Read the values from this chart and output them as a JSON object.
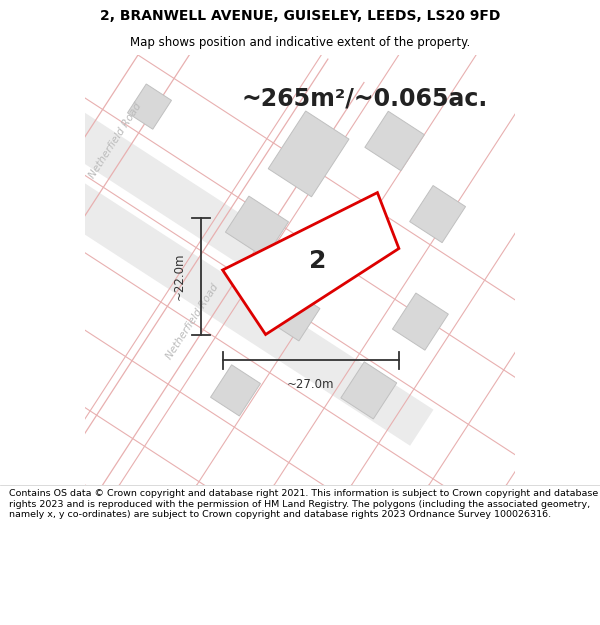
{
  "title": "2, BRANWELL AVENUE, GUISELEY, LEEDS, LS20 9FD",
  "subtitle": "Map shows position and indicative extent of the property.",
  "area_text": "~265m²/~0.065ac.",
  "dimension_h": "~22.0m",
  "dimension_w": "~27.0m",
  "label_number": "2",
  "road_label_upper": "Netherfield Road",
  "road_label_lower": "Netherfield Road",
  "copyright_text": "Contains OS data © Crown copyright and database right 2021. This information is subject to Crown copyright and database rights 2023 and is reproduced with the permission of HM Land Registry. The polygons (including the associated geometry, namely x, y co-ordinates) are subject to Crown copyright and database rights 2023 Ordnance Survey 100026316.",
  "map_bg": "#f5f5f5",
  "building_fill": "#d8d8d8",
  "building_edge": "#c0c0c0",
  "road_fill": "#ebebeb",
  "road_line_color": "#e8b0b0",
  "plot_line_color": "#dd0000",
  "text_color": "#222222",
  "dim_color": "#333333",
  "road_text_color": "#bbbbbb",
  "figsize": [
    6.0,
    6.25
  ],
  "title_fontsize": 10,
  "subtitle_fontsize": 8.5,
  "area_fontsize": 17,
  "label_fontsize": 18,
  "dim_fontsize": 8.5,
  "road_fontsize": 7.5,
  "copyright_fontsize": 6.8
}
